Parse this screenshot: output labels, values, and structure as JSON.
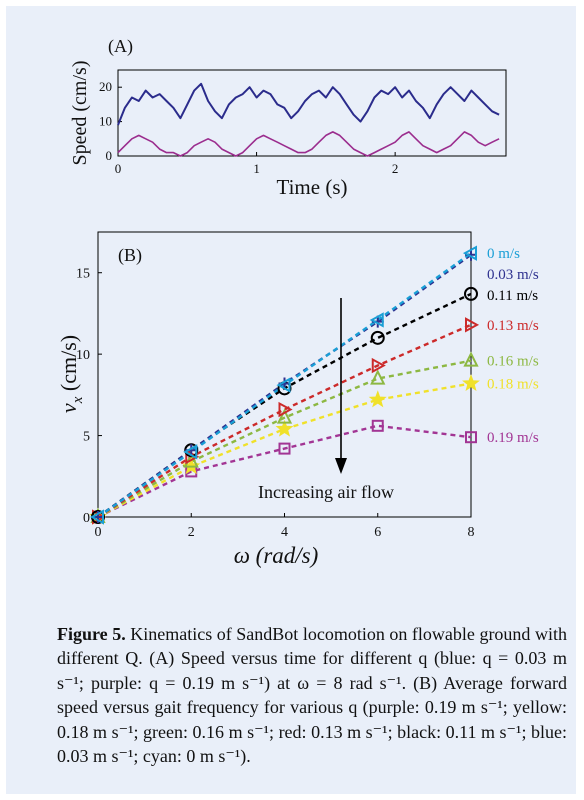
{
  "figure": {
    "panel_color": "#e9eff9",
    "caption_label": "Figure 5.",
    "caption_body": " Kinematics of SandBot locomotion on flowable ground with different Q. (A) Speed versus time for different q (blue: q = 0.03 m s⁻¹; purple: q = 0.19 m s⁻¹) at ω = 8 rad s⁻¹. (B) Average forward speed versus gait frequency for various q (purple: 0.19 m s⁻¹; yellow: 0.18 m s⁻¹; green: 0.16 m s⁻¹; red: 0.13 m s⁻¹; black: 0.11 m s⁻¹; blue: 0.03 m s⁻¹; cyan: 0 m s⁻¹)."
  },
  "chart_data": [
    {
      "type": "line",
      "panel_label": "(A)",
      "xlabel": "Time (s)",
      "ylabel": "Speed (cm/s)",
      "xlim": [
        0,
        2.8
      ],
      "ylim": [
        0,
        25
      ],
      "xticks": [
        "0",
        "1",
        "2"
      ],
      "yticks": [
        "0",
        "10",
        "20"
      ],
      "grid": false,
      "x": [
        0,
        0.05,
        0.1,
        0.15,
        0.2,
        0.25,
        0.3,
        0.35,
        0.4,
        0.45,
        0.5,
        0.55,
        0.6,
        0.65,
        0.7,
        0.75,
        0.8,
        0.85,
        0.9,
        0.95,
        1.0,
        1.05,
        1.1,
        1.15,
        1.2,
        1.25,
        1.3,
        1.35,
        1.4,
        1.45,
        1.5,
        1.55,
        1.6,
        1.65,
        1.7,
        1.75,
        1.8,
        1.85,
        1.9,
        1.95,
        2.0,
        2.05,
        2.1,
        2.15,
        2.2,
        2.25,
        2.3,
        2.35,
        2.4,
        2.45,
        2.5,
        2.55,
        2.6,
        2.65,
        2.7,
        2.75
      ],
      "series": [
        {
          "color": "#2b2c8c",
          "values": [
            9,
            14,
            17,
            16,
            19,
            17,
            18,
            16,
            14,
            11,
            15,
            19,
            21,
            16,
            13,
            11,
            15,
            17,
            18,
            20,
            17,
            19,
            18,
            15,
            14,
            11,
            13,
            16,
            18,
            19,
            17,
            20,
            18,
            15,
            12,
            10,
            13,
            17,
            19,
            18,
            20,
            17,
            19,
            16,
            14,
            11,
            15,
            18,
            20,
            18,
            16,
            19,
            17,
            15,
            13,
            12
          ]
        },
        {
          "color": "#9b2d8e",
          "values": [
            1,
            3,
            5,
            6,
            5,
            4,
            2,
            1,
            1,
            0,
            1,
            3,
            4,
            5,
            4,
            2,
            1,
            0,
            1,
            3,
            5,
            6,
            5,
            4,
            3,
            2,
            1,
            1,
            2,
            4,
            6,
            7,
            6,
            4,
            2,
            1,
            0,
            1,
            2,
            3,
            4,
            6,
            7,
            5,
            3,
            2,
            1,
            2,
            3,
            5,
            7,
            6,
            4,
            3,
            4,
            5
          ]
        }
      ]
    },
    {
      "type": "line",
      "panel_label": "(B)",
      "xlabel": "ω (rad/s)",
      "ylabel_main": "v",
      "ylabel_sub": "x",
      "ylabel_tail": " (cm/s)",
      "xlim": [
        0,
        8
      ],
      "ylim": [
        0,
        17.5
      ],
      "xticks": [
        "0",
        "2",
        "4",
        "6",
        "8"
      ],
      "yticks": [
        "0",
        "5",
        "10",
        "15"
      ],
      "grid": false,
      "x": [
        0,
        2,
        4,
        6,
        8
      ],
      "annotation": "Increasing air flow",
      "series": [
        {
          "name": "0 m/s",
          "color": "#1a9fd6",
          "marker": "triangle-left",
          "values": [
            0,
            4.0,
            8.1,
            12.1,
            16.2
          ]
        },
        {
          "name": "0.03 m/s",
          "color": "#2e318f",
          "marker": "plus",
          "values": [
            0,
            4.1,
            8.2,
            12.0,
            16.1
          ]
        },
        {
          "name": "0.11 m/s",
          "color": "#000000",
          "marker": "circle",
          "values": [
            0,
            4.1,
            7.9,
            11.0,
            13.7
          ]
        },
        {
          "name": "0.13 m/s",
          "color": "#cc2a2a",
          "marker": "triangle-right",
          "values": [
            0,
            3.7,
            6.6,
            9.3,
            11.8
          ]
        },
        {
          "name": "0.16 m/s",
          "color": "#8db842",
          "marker": "triangle-up",
          "values": [
            0,
            3.4,
            6.1,
            8.5,
            9.6
          ]
        },
        {
          "name": "0.18 m/s",
          "color": "#f0e12a",
          "marker": "star",
          "values": [
            0,
            3.1,
            5.4,
            7.2,
            8.2
          ]
        },
        {
          "name": "0.19 m/s",
          "color": "#a23594",
          "marker": "square",
          "values": [
            0,
            2.8,
            4.2,
            5.6,
            4.9
          ]
        }
      ]
    }
  ]
}
